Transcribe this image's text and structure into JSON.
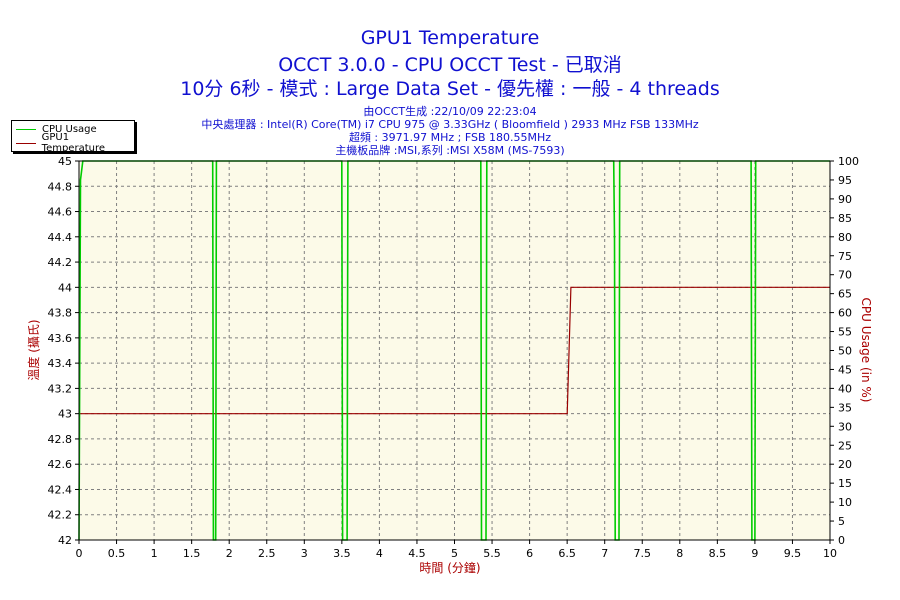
{
  "title": {
    "line1": "GPU1 Temperature",
    "line2": "OCCT 3.0.0 - CPU OCCT Test - 已取消",
    "line3": "10分 6秒 - 模式 : Large Data Set - 優先權 : 一般 - 4 threads"
  },
  "info": {
    "line1": "由OCCT生成 :22/10/09 22:23:04",
    "line2": "中央處理器 : Intel(R) Core(TM) i7 CPU 975 @ 3.33GHz ( Bloomfield ) 2933 MHz FSB 133MHz",
    "line3": "超頻 : 3971.97 MHz ; FSB 180.55MHz",
    "line4": "主機板品牌 :MSI,系列 :MSI X58M (MS-7593)"
  },
  "legend": {
    "cpu_usage": "CPU Usage",
    "gpu1_temperature": "GPU1 Temperature"
  },
  "chart_data": {
    "type": "line",
    "xlabel": "時間 (分鐘)",
    "ylabel_left": "溫度 (攝氏)",
    "ylabel_right": "CPU Usage (in %)",
    "xlim": [
      0,
      10
    ],
    "ylim_left": [
      42,
      45
    ],
    "ylim_right": [
      0,
      100
    ],
    "x_ticks": [
      "0",
      "0.5",
      "1",
      "1.5",
      "2",
      "2.5",
      "3",
      "3.5",
      "4",
      "4.5",
      "5",
      "5.5",
      "6",
      "6.5",
      "7",
      "7.5",
      "8",
      "8.5",
      "9",
      "9.5",
      "10"
    ],
    "y_ticks_left": [
      "42",
      "42.2",
      "42.4",
      "42.6",
      "42.8",
      "43",
      "43.2",
      "43.4",
      "43.6",
      "43.8",
      "44",
      "44.2",
      "44.4",
      "44.6",
      "44.8",
      "45"
    ],
    "y_ticks_right": [
      "0",
      "5",
      "10",
      "15",
      "20",
      "25",
      "30",
      "35",
      "40",
      "45",
      "50",
      "55",
      "60",
      "65",
      "70",
      "75",
      "80",
      "85",
      "90",
      "95",
      "100"
    ],
    "grid": true,
    "legend_position": "top-left",
    "colors": {
      "cpu": "#00cc00",
      "gpu": "#990000",
      "plot_bg": "#fcfae8",
      "grid": "#808080"
    },
    "series": [
      {
        "name": "GPU1 Temperature",
        "axis": "left",
        "points": [
          [
            0,
            43
          ],
          [
            6.5,
            43
          ],
          [
            6.52,
            43.4
          ],
          [
            6.55,
            44
          ],
          [
            10,
            44
          ]
        ]
      },
      {
        "name": "CPU Usage",
        "axis": "right",
        "points": [
          [
            0,
            0
          ],
          [
            0.02,
            95
          ],
          [
            0.05,
            100
          ],
          [
            1.78,
            100
          ],
          [
            1.79,
            0
          ],
          [
            1.82,
            0
          ],
          [
            1.83,
            100
          ],
          [
            3.5,
            100
          ],
          [
            3.51,
            0
          ],
          [
            3.57,
            0
          ],
          [
            3.58,
            100
          ],
          [
            5.35,
            100
          ],
          [
            5.36,
            0
          ],
          [
            5.42,
            0
          ],
          [
            5.43,
            100
          ],
          [
            7.12,
            100
          ],
          [
            7.13,
            80
          ],
          [
            7.14,
            0
          ],
          [
            7.19,
            0
          ],
          [
            7.2,
            100
          ],
          [
            8.95,
            100
          ],
          [
            8.96,
            0
          ],
          [
            9.0,
            0
          ],
          [
            9.01,
            100
          ],
          [
            10,
            100
          ]
        ]
      }
    ]
  }
}
